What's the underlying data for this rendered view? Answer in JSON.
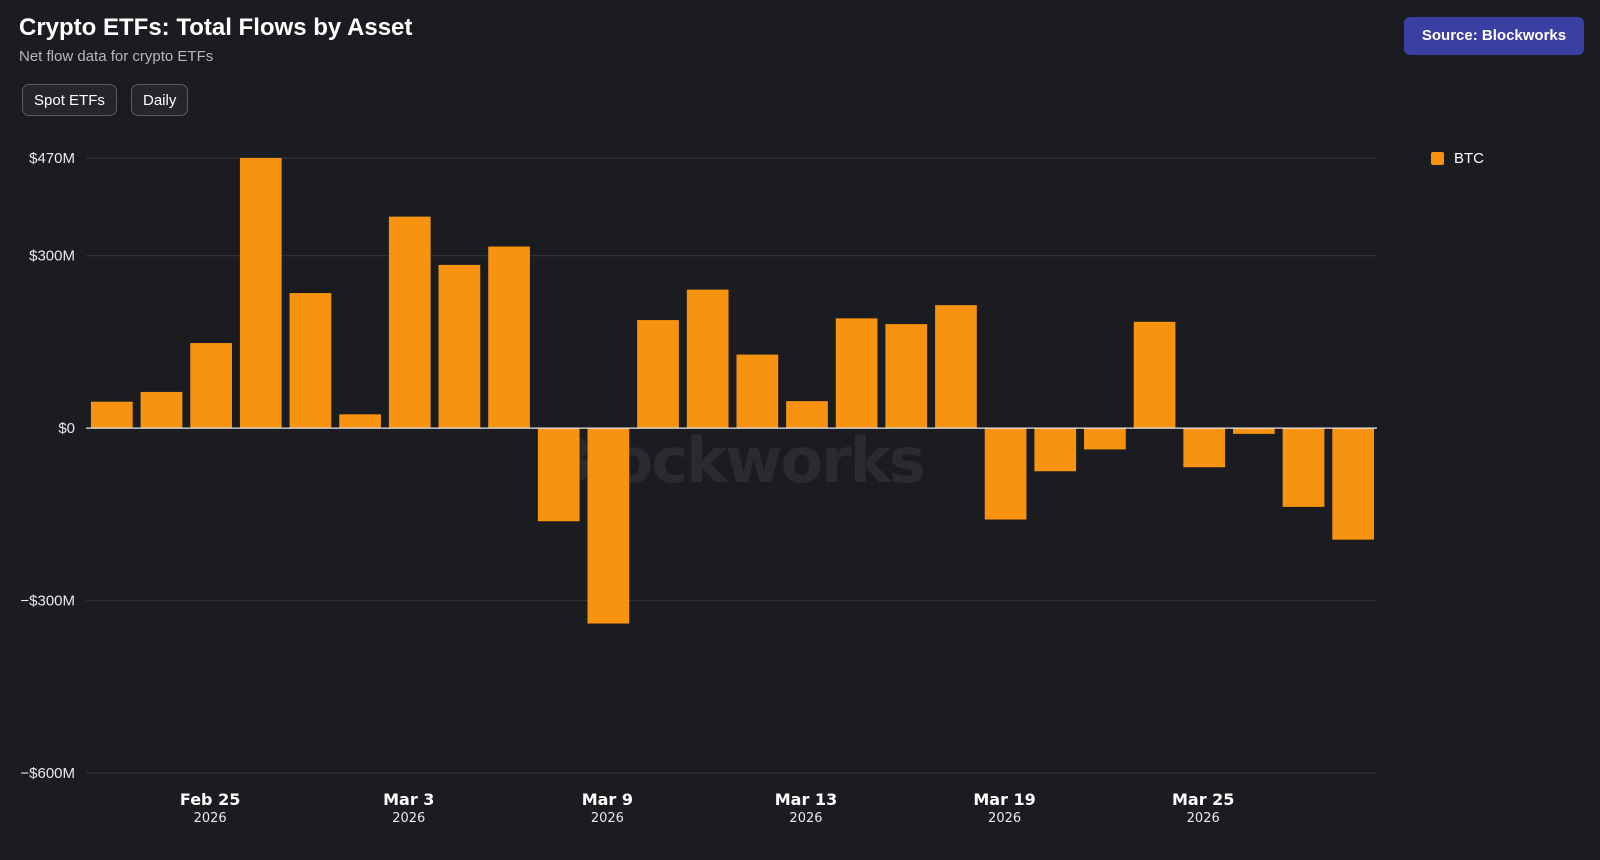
{
  "header": {
    "title": "Crypto ETFs: Total Flows by Asset",
    "subtitle": "Net flow data for crypto ETFs",
    "source_label": "Source: Blockworks"
  },
  "filters": {
    "type_label": "Spot ETFs",
    "interval_label": "Daily"
  },
  "legend": {
    "items": [
      {
        "label": "BTC",
        "color": "#f7930e"
      }
    ]
  },
  "watermark": "Blockworks",
  "chart_data": {
    "type": "bar",
    "title": "Crypto ETFs: Total Flows by Asset",
    "subtitle": "Net flow data for crypto ETFs",
    "xlabel": "",
    "ylabel": "",
    "ylim": [
      -600,
      470
    ],
    "y_ticks": [
      {
        "value": 470,
        "label": "$470M"
      },
      {
        "value": 300,
        "label": "$300M"
      },
      {
        "value": 0,
        "label": "$0"
      },
      {
        "value": -300,
        "label": "−$300M"
      },
      {
        "value": -600,
        "label": "−$600M"
      }
    ],
    "x_ticks": [
      {
        "index": 2.5,
        "label": "Feb 25",
        "sub": "2026"
      },
      {
        "index": 6.5,
        "label": "Mar 3",
        "sub": "2026"
      },
      {
        "index": 10.5,
        "label": "Mar 9",
        "sub": "2026"
      },
      {
        "index": 14.5,
        "label": "Mar 13",
        "sub": "2026"
      },
      {
        "index": 18.5,
        "label": "Mar 19",
        "sub": "2026"
      },
      {
        "index": 22.5,
        "label": "Mar 25",
        "sub": "2026"
      }
    ],
    "series": [
      {
        "name": "BTC",
        "color": "#f7930e",
        "values": [
          46,
          63,
          148,
          470,
          235,
          24,
          368,
          284,
          316,
          -162,
          -340,
          188,
          241,
          128,
          47,
          191,
          181,
          214,
          -159,
          -75,
          -37,
          185,
          -68,
          -10,
          -137,
          -194
        ]
      }
    ],
    "legend_position": "top-right",
    "grid": true
  }
}
